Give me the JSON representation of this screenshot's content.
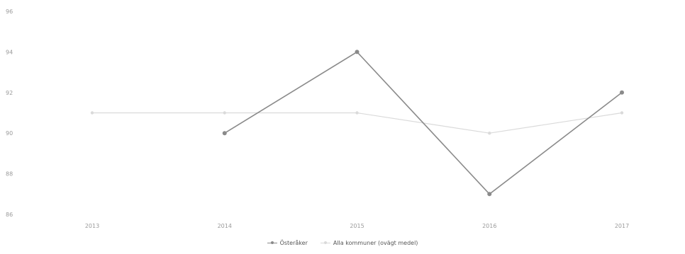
{
  "chart_data": {
    "type": "line",
    "x": [
      "2013",
      "2014",
      "2015",
      "2016",
      "2017"
    ],
    "ylim": [
      86,
      96
    ],
    "yticks": [
      86,
      88,
      90,
      92,
      94,
      96
    ],
    "series": [
      {
        "name": "Österåker",
        "values": [
          null,
          90,
          94,
          87,
          92
        ],
        "color": "#8a8a8a"
      },
      {
        "name": "Alla kommuner (ovägt medel)",
        "values": [
          91,
          91,
          91,
          90,
          91
        ],
        "color": "#dadada"
      }
    ],
    "legend_position": "bottom-center",
    "grid": false
  }
}
